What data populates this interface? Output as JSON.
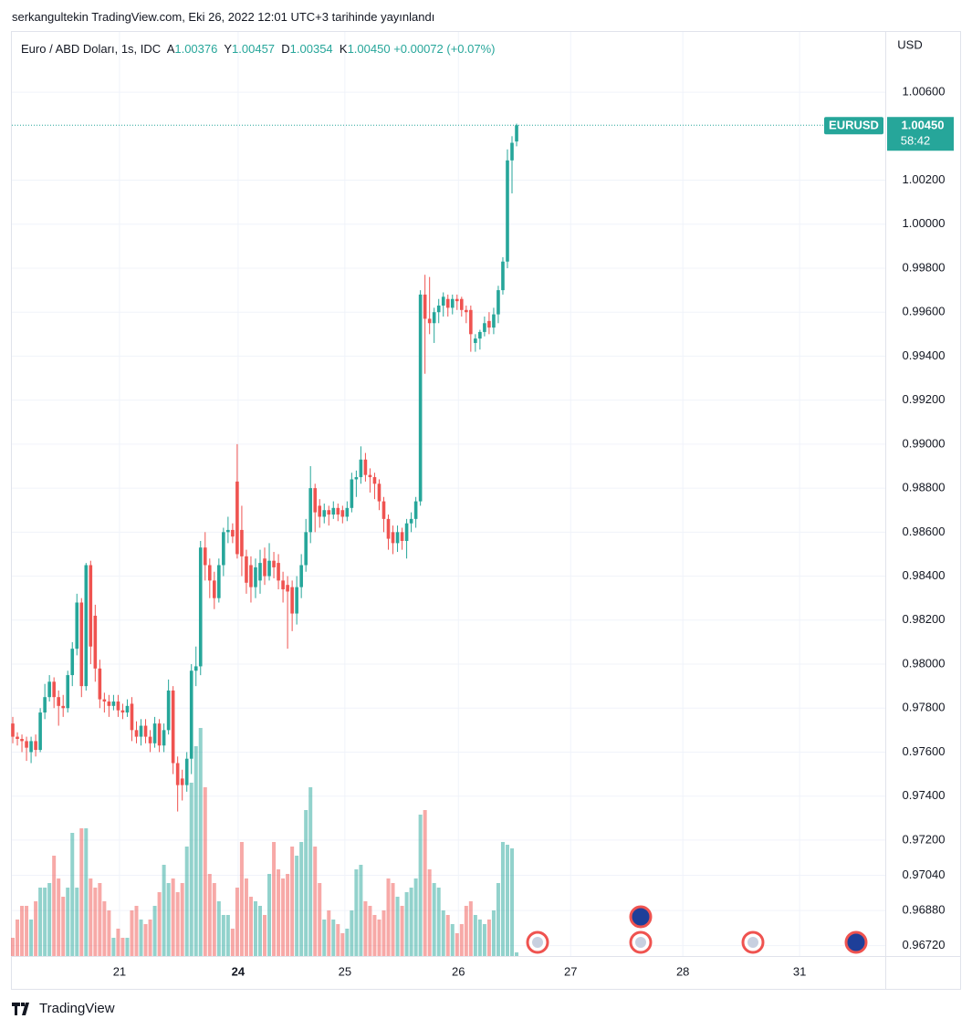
{
  "published": "serkangultekin TradingView.com, Eki 26, 2022 12:01 UTC+3 tarihinde yayınlandı",
  "footer": "TradingView",
  "chart_data": {
    "type": "candlestick",
    "symbol": "Euro / ABD Doları, 1s, IDC",
    "legend_items": [
      {
        "key": "A",
        "value": "1.00376"
      },
      {
        "key": "Y",
        "value": "1.00457"
      },
      {
        "key": "D",
        "value": "1.00354"
      },
      {
        "key": "K",
        "value": "1.00450"
      }
    ],
    "change": "+0.00072 (+0.07%)",
    "currency": "USD",
    "price_tag": {
      "symbol": "EURUSD",
      "price": "1.00450",
      "timer": "58:42"
    },
    "up_color": "#26a69a",
    "down_color": "#ef5350",
    "grid": true,
    "xlim": [
      -0.2,
      190.5
    ],
    "xticks": [
      {
        "value": 23.3,
        "label": "21"
      },
      {
        "value": 49.2,
        "label": "24",
        "bold": true
      },
      {
        "value": 72.5,
        "label": "25"
      },
      {
        "value": 97.3,
        "label": "26"
      },
      {
        "value": 121.8,
        "label": "27"
      },
      {
        "value": 146.3,
        "label": "28"
      },
      {
        "value": 171.8,
        "label": "31"
      }
    ],
    "ylim": [
      0.96673,
      1.00874
    ],
    "yticks": [
      {
        "value": 1.006,
        "label": "1.00600"
      },
      {
        "value": 1.002,
        "label": "1.00200"
      },
      {
        "value": 1.0,
        "label": "1.00000"
      },
      {
        "value": 0.998,
        "label": "0.99800"
      },
      {
        "value": 0.996,
        "label": "0.99600"
      },
      {
        "value": 0.994,
        "label": "0.99400"
      },
      {
        "value": 0.992,
        "label": "0.99200"
      },
      {
        "value": 0.99,
        "label": "0.99000"
      },
      {
        "value": 0.988,
        "label": "0.98800"
      },
      {
        "value": 0.986,
        "label": "0.98600"
      },
      {
        "value": 0.984,
        "label": "0.98400"
      },
      {
        "value": 0.982,
        "label": "0.98200"
      },
      {
        "value": 0.98,
        "label": "0.98000"
      },
      {
        "value": 0.978,
        "label": "0.97800"
      },
      {
        "value": 0.976,
        "label": "0.97600"
      },
      {
        "value": 0.974,
        "label": "0.97400"
      },
      {
        "value": 0.972,
        "label": "0.97200"
      },
      {
        "value": 0.9704,
        "label": "0.97040"
      },
      {
        "value": 0.9688,
        "label": "0.96880"
      },
      {
        "value": 0.9672,
        "label": "0.96720"
      }
    ],
    "open": [
      0.9773,
      0.9767,
      0.9766,
      0.9765,
      0.976,
      0.9765,
      0.9761,
      0.9778,
      0.9785,
      0.9792,
      0.9785,
      0.9781,
      0.978,
      0.9795,
      0.9807,
      0.9828,
      0.979,
      0.9845,
      0.9822,
      0.9798,
      0.9784,
      0.9783,
      0.9781,
      0.9783,
      0.9779,
      0.9778,
      0.9782,
      0.977,
      0.9767,
      0.9772,
      0.9767,
      0.9764,
      0.9773,
      0.9763,
      0.977,
      0.9788,
      0.9755,
      0.9748,
      0.9745,
      0.9757,
      0.9797,
      0.9799,
      0.9853,
      0.9845,
      0.9838,
      0.983,
      0.9845,
      0.986,
      0.9861,
      0.9883,
      0.9861,
      0.9849,
      0.9845,
      0.9835,
      0.9838,
      0.9848,
      0.984,
      0.9847,
      0.9846,
      0.9838,
      0.9836,
      0.9835,
      0.9823,
      0.9835,
      0.9845,
      0.986,
      0.988,
      0.9872,
      0.9867,
      0.987,
      0.9868,
      0.9871,
      0.987,
      0.9867,
      0.9871,
      0.9884,
      0.9885,
      0.9893,
      0.9886,
      0.9885,
      0.9882,
      0.9874,
      0.9866,
      0.986,
      0.9855,
      0.986,
      0.9856,
      0.9864,
      0.9866,
      0.9874,
      0.9968,
      0.9957,
      0.9955,
      0.996,
      0.9963,
      0.9966,
      0.9962,
      0.9966,
      0.9966,
      0.9961,
      0.9961,
      0.9946,
      0.9948,
      0.9951,
      0.9956,
      0.9953,
      0.9959,
      0.997,
      0.9983,
      1.0029,
      1.00376
    ],
    "high": [
      0.9776,
      0.9769,
      0.9768,
      0.9767,
      0.9767,
      0.9768,
      0.978,
      0.9791,
      0.9795,
      0.9794,
      0.9788,
      0.9786,
      0.9797,
      0.981,
      0.9832,
      0.983,
      0.9846,
      0.9847,
      0.9827,
      0.9802,
      0.9787,
      0.9786,
      0.9786,
      0.9786,
      0.9782,
      0.9784,
      0.9785,
      0.9774,
      0.9775,
      0.9775,
      0.977,
      0.9776,
      0.9775,
      0.9773,
      0.9793,
      0.979,
      0.9758,
      0.9752,
      0.976,
      0.98,
      0.9808,
      0.9856,
      0.986,
      0.9848,
      0.9842,
      0.9848,
      0.9862,
      0.9867,
      0.9864,
      0.99,
      0.9872,
      0.9852,
      0.9849,
      0.9848,
      0.9852,
      0.9853,
      0.9855,
      0.9851,
      0.985,
      0.9842,
      0.984,
      0.9838,
      0.984,
      0.985,
      0.9866,
      0.989,
      0.9882,
      0.9875,
      0.9873,
      0.9872,
      0.9874,
      0.9873,
      0.9872,
      0.9874,
      0.9887,
      0.9888,
      0.9899,
      0.9896,
      0.9889,
      0.9887,
      0.9884,
      0.9876,
      0.9868,
      0.9863,
      0.9863,
      0.9862,
      0.9866,
      0.9869,
      0.9876,
      0.997,
      0.9977,
      0.9976,
      0.9962,
      0.9966,
      0.9969,
      0.9968,
      0.9968,
      0.9968,
      0.9967,
      0.9963,
      0.9963,
      0.995,
      0.9952,
      0.9958,
      0.996,
      0.9962,
      0.9972,
      0.9985,
      1.0034,
      1.004,
      1.00457
    ],
    "low": [
      0.9764,
      0.9763,
      0.976,
      0.9756,
      0.9755,
      0.9758,
      0.976,
      0.9775,
      0.9783,
      0.978,
      0.9772,
      0.9776,
      0.9778,
      0.979,
      0.9804,
      0.9785,
      0.9788,
      0.98,
      0.9792,
      0.978,
      0.9778,
      0.9776,
      0.9779,
      0.9776,
      0.9775,
      0.9776,
      0.9765,
      0.9764,
      0.9763,
      0.9764,
      0.976,
      0.9762,
      0.976,
      0.976,
      0.9768,
      0.975,
      0.9733,
      0.9738,
      0.9742,
      0.975,
      0.979,
      0.9795,
      0.9838,
      0.983,
      0.9825,
      0.9828,
      0.984,
      0.9855,
      0.9855,
      0.9848,
      0.984,
      0.9832,
      0.9828,
      0.983,
      0.9832,
      0.9836,
      0.9838,
      0.9839,
      0.9834,
      0.9828,
      0.9807,
      0.9815,
      0.9818,
      0.983,
      0.9842,
      0.9855,
      0.986,
      0.9862,
      0.9864,
      0.9863,
      0.9866,
      0.9865,
      0.9864,
      0.9865,
      0.9869,
      0.9876,
      0.9882,
      0.9883,
      0.9878,
      0.9875,
      0.987,
      0.986,
      0.9852,
      0.985,
      0.9851,
      0.9852,
      0.9848,
      0.986,
      0.9862,
      0.9872,
      0.9932,
      0.995,
      0.9946,
      0.9955,
      0.9958,
      0.9958,
      0.9959,
      0.9961,
      0.9958,
      0.9955,
      0.9942,
      0.9942,
      0.9943,
      0.9949,
      0.995,
      0.995,
      0.9955,
      0.9968,
      0.998,
      1.0014,
      1.00354
    ],
    "close": [
      0.9767,
      0.9766,
      0.9765,
      0.9762,
      0.9765,
      0.9761,
      0.9778,
      0.9785,
      0.9792,
      0.9785,
      0.9781,
      0.978,
      0.9795,
      0.9807,
      0.9828,
      0.979,
      0.9845,
      0.9808,
      0.9798,
      0.9784,
      0.9783,
      0.9781,
      0.9783,
      0.9779,
      0.9778,
      0.9781,
      0.977,
      0.9767,
      0.9772,
      0.9767,
      0.9764,
      0.9773,
      0.9763,
      0.977,
      0.9788,
      0.9755,
      0.9745,
      0.9745,
      0.9757,
      0.9797,
      0.9799,
      0.9853,
      0.9845,
      0.9838,
      0.983,
      0.9845,
      0.986,
      0.9861,
      0.9858,
      0.985,
      0.9849,
      0.9837,
      0.9835,
      0.9844,
      0.9846,
      0.984,
      0.9847,
      0.9844,
      0.9838,
      0.9834,
      0.9833,
      0.9823,
      0.9835,
      0.9845,
      0.986,
      0.988,
      0.9869,
      0.9867,
      0.987,
      0.9868,
      0.9871,
      0.9868,
      0.9867,
      0.9871,
      0.9884,
      0.9885,
      0.9893,
      0.9886,
      0.9885,
      0.9882,
      0.9874,
      0.9866,
      0.9857,
      0.9855,
      0.986,
      0.9856,
      0.9864,
      0.9866,
      0.9874,
      0.9968,
      0.9957,
      0.9955,
      0.996,
      0.9963,
      0.9967,
      0.9962,
      0.9966,
      0.9965,
      0.9961,
      0.996,
      0.995,
      0.9948,
      0.9951,
      0.9955,
      0.9953,
      0.9959,
      0.997,
      0.9983,
      1.0029,
      1.0037,
      1.0045
    ],
    "volume": [
      20,
      40,
      55,
      55,
      40,
      60,
      75,
      75,
      80,
      110,
      85,
      65,
      75,
      135,
      75,
      140,
      140,
      85,
      75,
      80,
      60,
      50,
      20,
      30,
      20,
      20,
      50,
      55,
      40,
      35,
      40,
      55,
      70,
      100,
      80,
      85,
      70,
      80,
      120,
      190,
      230,
      250,
      185,
      90,
      80,
      60,
      45,
      45,
      30,
      75,
      125,
      85,
      65,
      60,
      55,
      45,
      90,
      125,
      95,
      85,
      90,
      120,
      110,
      125,
      160,
      185,
      120,
      80,
      40,
      50,
      40,
      35,
      25,
      30,
      50,
      95,
      100,
      60,
      55,
      45,
      40,
      50,
      85,
      80,
      65,
      55,
      70,
      75,
      85,
      155,
      160,
      95,
      80,
      75,
      50,
      45,
      35,
      25,
      35,
      55,
      60,
      45,
      40,
      35,
      40,
      50,
      80,
      125,
      122,
      118,
      4
    ]
  }
}
